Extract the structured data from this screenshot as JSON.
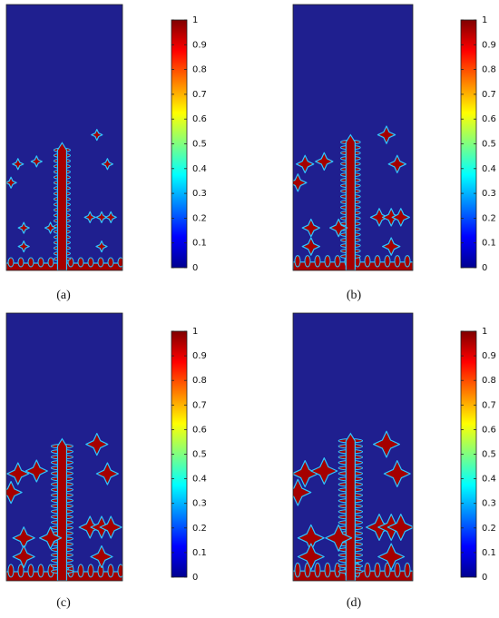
{
  "panels": [
    {
      "label": "(a)",
      "colorbar": {
        "lim": [
          0,
          1
        ],
        "ticks": [
          0,
          0.1,
          0.2,
          0.3,
          0.4,
          0.5,
          0.6,
          0.7,
          0.8,
          0.9,
          1
        ]
      }
    },
    {
      "label": "(b)",
      "colorbar": {
        "lim": [
          0,
          1
        ],
        "ticks": [
          0,
          0.1,
          0.2,
          0.3,
          0.4,
          0.5,
          0.6,
          0.7,
          0.8,
          0.9,
          1
        ]
      }
    },
    {
      "label": "(c)",
      "colorbar": {
        "lim": [
          0,
          1
        ],
        "ticks": [
          0,
          0.1,
          0.2,
          0.3,
          0.4,
          0.5,
          0.6,
          0.7,
          0.8,
          0.9,
          1
        ]
      }
    },
    {
      "label": "(d)",
      "colorbar": {
        "lim": [
          0,
          1
        ],
        "ticks": [
          0,
          0.1,
          0.2,
          0.3,
          0.4,
          0.5,
          0.6,
          0.7,
          0.8,
          0.9,
          1
        ]
      }
    }
  ]
}
